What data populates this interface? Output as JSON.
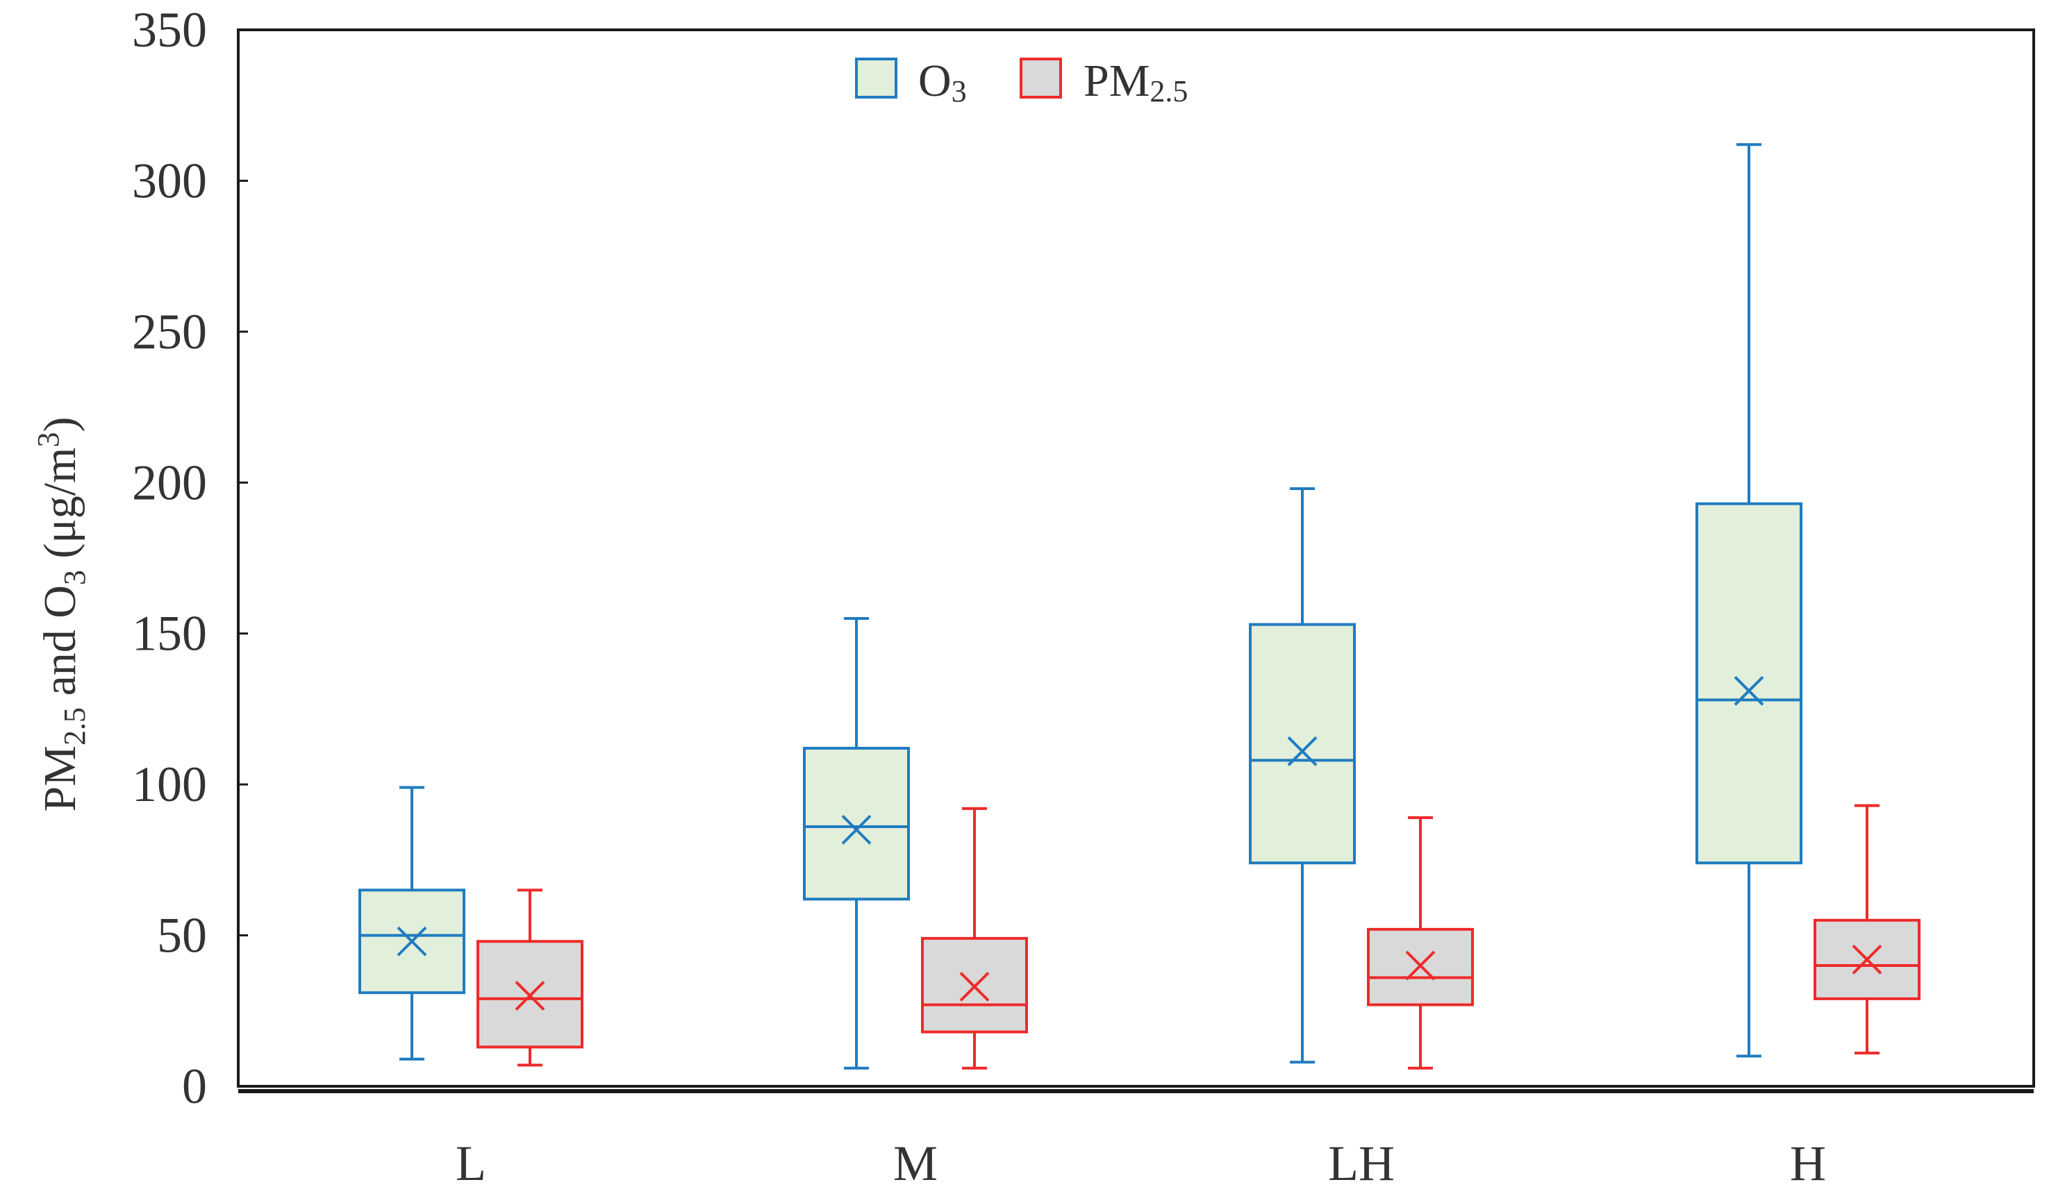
{
  "chart_data": {
    "type": "boxplot",
    "title": "",
    "xlabel": "",
    "ylabel": {
      "prefix": "PM",
      "prefix_sub": "2.5",
      "middle": " and O",
      "middle_sub": "3",
      "unit_open": "  (μg/m",
      "unit_sup": "3",
      "unit_close": ")"
    },
    "ylim": [
      0,
      350
    ],
    "yticks": [
      "0",
      "50",
      "100",
      "150",
      "200",
      "250",
      "300",
      "350"
    ],
    "ytick_values": [
      0,
      50,
      100,
      150,
      200,
      250,
      300,
      350
    ],
    "categories": [
      "L",
      "M",
      "LH",
      "H"
    ],
    "legend": [
      {
        "base": "O",
        "sub": "3"
      },
      {
        "base": "PM",
        "sub": "2.5"
      }
    ],
    "series": [
      {
        "name": "O3",
        "stroke": "#1f7cc1",
        "fill": "#e2efda",
        "boxes": [
          {
            "min": 9,
            "q1": 31,
            "median": 50,
            "q3": 65,
            "max": 99,
            "mean": 48
          },
          {
            "min": 6,
            "q1": 62,
            "median": 86,
            "q3": 112,
            "max": 155,
            "mean": 85
          },
          {
            "min": 8,
            "q1": 74,
            "median": 108,
            "q3": 153,
            "max": 198,
            "mean": 111
          },
          {
            "min": 10,
            "q1": 74,
            "median": 128,
            "q3": 193,
            "max": 312,
            "mean": 131
          }
        ]
      },
      {
        "name": "PM2.5",
        "stroke": "#ee2a2a",
        "fill": "#d9d9d9",
        "boxes": [
          {
            "min": 7,
            "q1": 13,
            "median": 29,
            "q3": 48,
            "max": 65,
            "mean": 30
          },
          {
            "min": 6,
            "q1": 18,
            "median": 27,
            "q3": 49,
            "max": 92,
            "mean": 33
          },
          {
            "min": 6,
            "q1": 27,
            "median": 36,
            "q3": 52,
            "max": 89,
            "mean": 40
          },
          {
            "min": 11,
            "q1": 29,
            "median": 40,
            "q3": 55,
            "max": 93,
            "mean": 42
          }
        ]
      }
    ]
  }
}
